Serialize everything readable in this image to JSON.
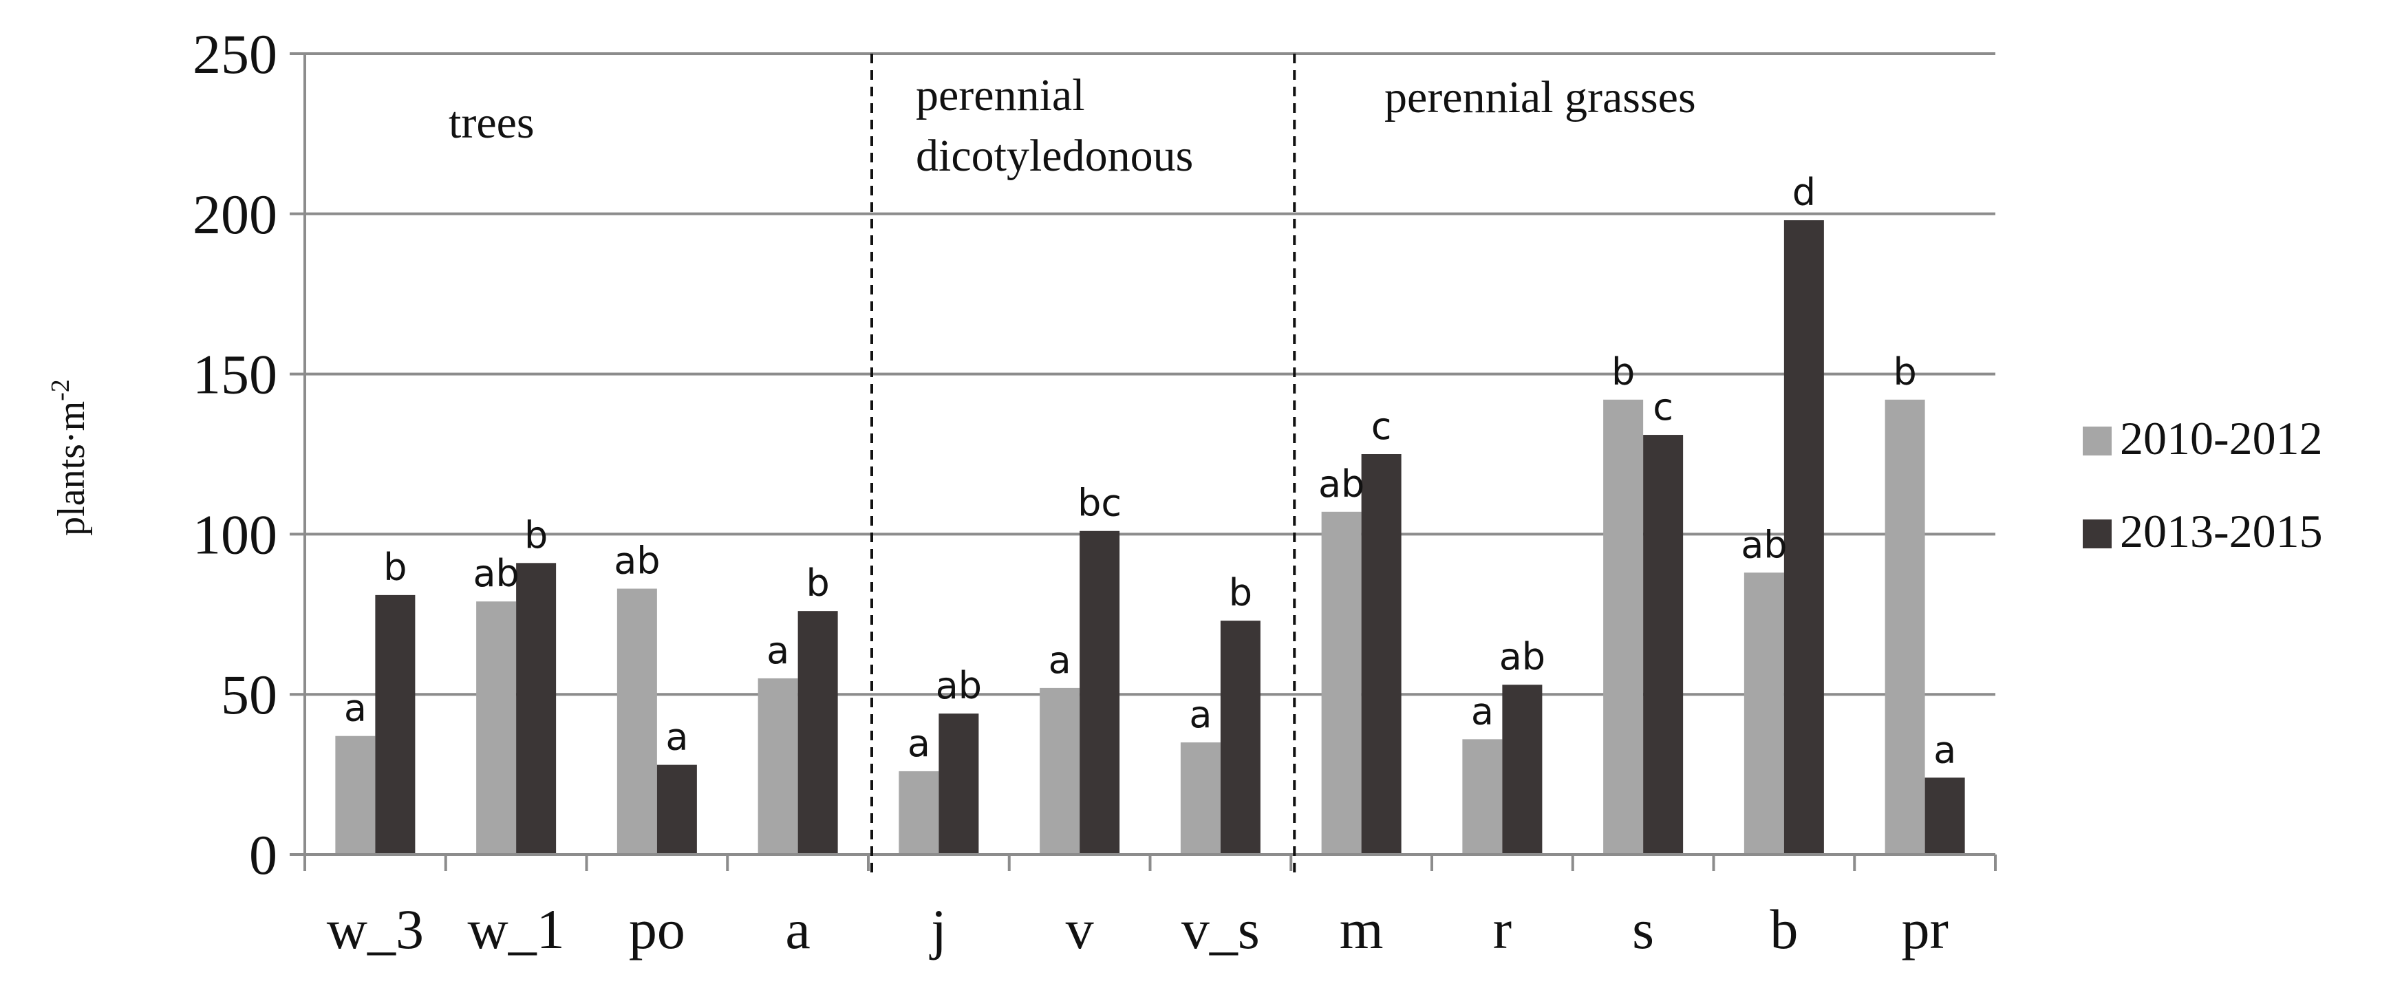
{
  "chart_data": {
    "type": "bar",
    "title": "",
    "xlabel": "",
    "ylabel": "plants·m",
    "ylabel_superscript": "-2",
    "ylim": [
      0,
      250
    ],
    "yticks": [
      0,
      50,
      100,
      150,
      200,
      250
    ],
    "grid": true,
    "legend_position": "right",
    "categories": [
      "w_3",
      "w_1",
      "po",
      "a",
      "j",
      "v",
      "v_s",
      "m",
      "r",
      "s",
      "b",
      "pr"
    ],
    "series": [
      {
        "name": "2010-2012",
        "color": "#a6a6a6",
        "values": [
          37,
          79,
          83,
          55,
          26,
          52,
          35,
          107,
          36,
          142,
          88,
          142
        ],
        "letters": [
          "a",
          "ab",
          "ab",
          "a",
          "a",
          "a",
          "a",
          "ab",
          "a",
          "b",
          "ab",
          "b"
        ]
      },
      {
        "name": "2013-2015",
        "color": "#3b3636",
        "values": [
          81,
          91,
          28,
          76,
          44,
          101,
          73,
          125,
          53,
          131,
          198,
          24
        ],
        "letters": [
          "b",
          "b",
          "a",
          "b",
          "ab",
          "bc",
          "b",
          "c",
          "ab",
          "c",
          "d",
          "a"
        ]
      }
    ],
    "groups": [
      {
        "lines": [
          "trees"
        ],
        "start": 0,
        "end": 3
      },
      {
        "lines": [
          "perennial",
          "dicotyledonous"
        ],
        "start": 4,
        "end": 6
      },
      {
        "lines": [
          "perennial  grasses"
        ],
        "start": 7,
        "end": 11
      }
    ],
    "dividers_after": [
      3,
      6
    ]
  }
}
